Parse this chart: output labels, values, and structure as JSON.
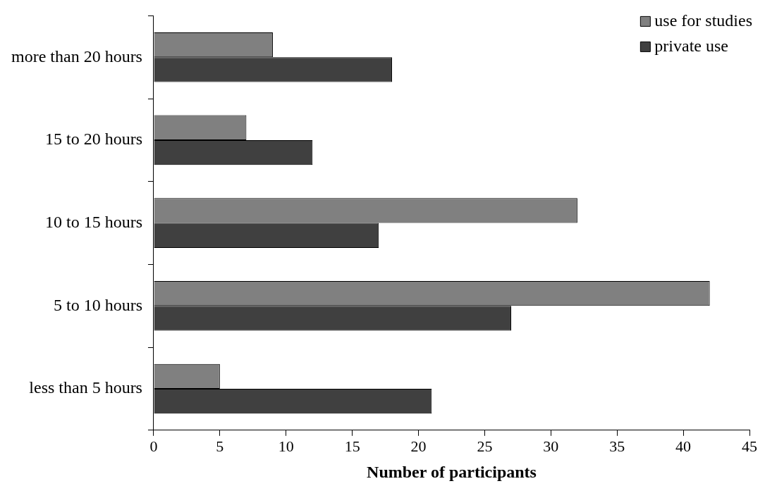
{
  "chart_data": {
    "type": "bar",
    "orientation": "horizontal",
    "xlabel": "Number of participants",
    "categories": [
      "more than 20 hours",
      "15 to 20 hours",
      "10 to 15 hours",
      "5 to 10 hours",
      "less than 5 hours"
    ],
    "series": [
      {
        "name": "use for studies",
        "color": "#808080",
        "values": [
          9,
          7,
          32,
          42,
          5
        ]
      },
      {
        "name": "private use",
        "color": "#404040",
        "values": [
          18,
          12,
          17,
          27,
          21
        ]
      }
    ],
    "xlim": [
      0,
      45
    ],
    "xticks": [
      0,
      5,
      10,
      15,
      20,
      25,
      30,
      35,
      40,
      45
    ],
    "grid": false,
    "legend": "top right"
  }
}
